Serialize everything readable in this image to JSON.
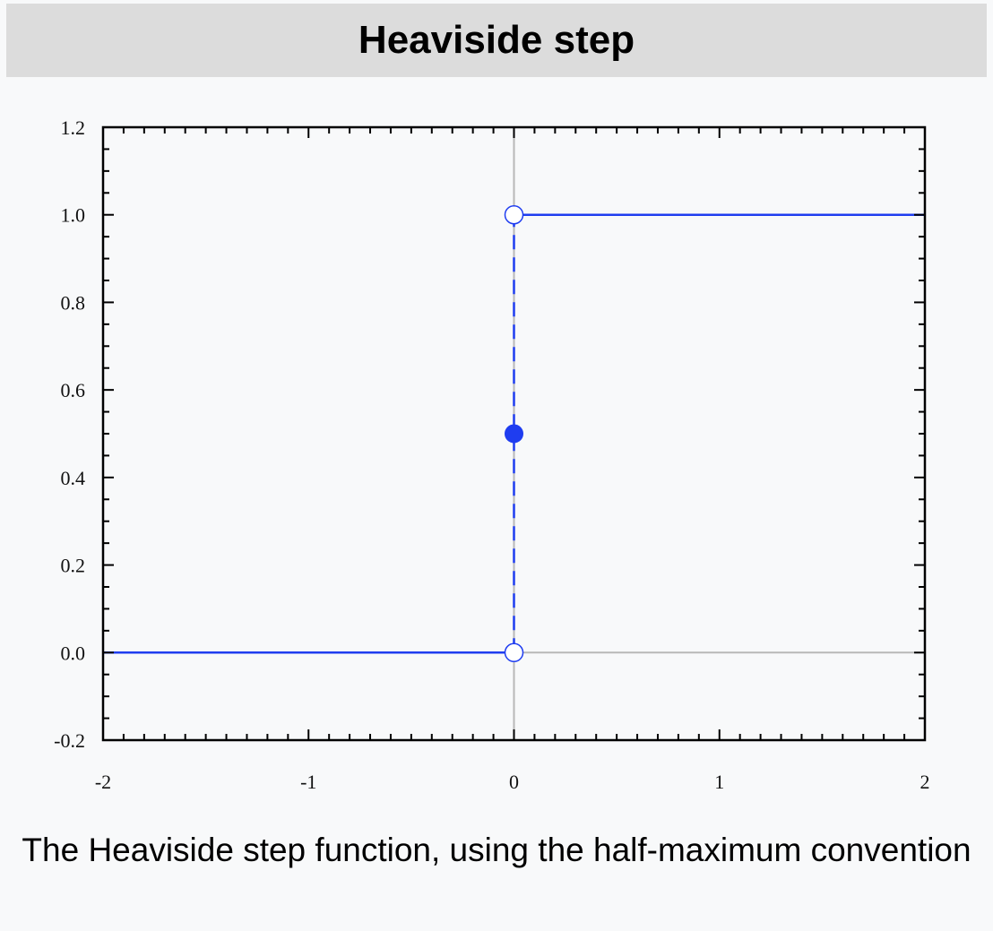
{
  "infobox": {
    "title": "Heaviside step",
    "caption": "The Heaviside step function, using the half-maximum convention"
  },
  "colors": {
    "title_background": "#dcdcdc",
    "panel_background": "#f8f9fa",
    "series": "#1f3df0",
    "axis_lines": "#b8b8b8",
    "frame": "#000000"
  },
  "chart_data": {
    "type": "line",
    "title": "",
    "xlabel": "",
    "ylabel": "",
    "xlim": [
      -2,
      2
    ],
    "ylim": [
      -0.2,
      1.2
    ],
    "xticks": [
      -2,
      -1,
      0,
      1,
      2
    ],
    "xtick_labels": [
      "-2",
      "-1",
      "0",
      "1",
      "2"
    ],
    "yticks": [
      -0.2,
      0.0,
      0.2,
      0.4,
      0.6,
      0.8,
      1.0,
      1.2
    ],
    "ytick_labels": [
      "-0.2",
      "0.0",
      "0.2",
      "0.4",
      "0.6",
      "0.8",
      "1.0",
      "1.2"
    ],
    "grid": false,
    "zero_lines": true,
    "series": [
      {
        "style": "solid",
        "x": [
          -2,
          0
        ],
        "y": [
          0,
          0
        ]
      },
      {
        "style": "solid",
        "x": [
          0,
          2
        ],
        "y": [
          1,
          1
        ]
      },
      {
        "style": "dashed",
        "x": [
          0,
          0
        ],
        "y": [
          0,
          1
        ]
      }
    ],
    "points": [
      {
        "x": 0,
        "y": 0,
        "marker": "open-circle"
      },
      {
        "x": 0,
        "y": 1,
        "marker": "open-circle"
      },
      {
        "x": 0,
        "y": 0.5,
        "marker": "filled-circle"
      }
    ]
  }
}
